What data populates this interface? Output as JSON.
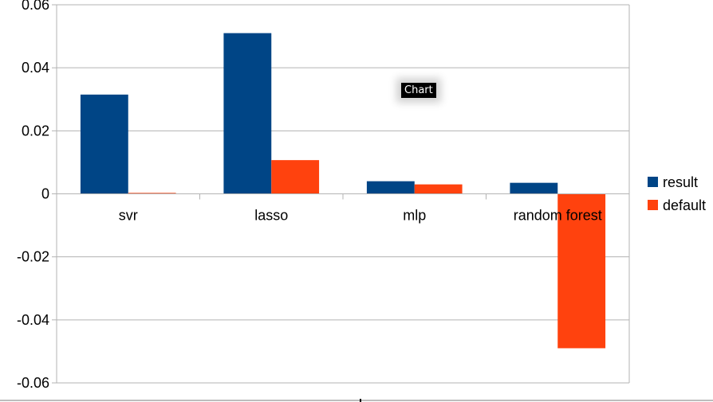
{
  "tooltip": "Chart",
  "chart_data": {
    "type": "bar",
    "categories": [
      "svr",
      "lasso",
      "mlp",
      "random forest"
    ],
    "series": [
      {
        "name": "result",
        "color": "#004586",
        "values": [
          0.0315,
          0.051,
          0.004,
          0.0035
        ]
      },
      {
        "name": "default",
        "color": "#ff420e",
        "values": [
          0.0003,
          0.0107,
          0.003,
          -0.049
        ]
      }
    ],
    "ylim": [
      -0.06,
      0.06
    ],
    "yticks": [
      "-0.06",
      "-0.04",
      "-0.02",
      "0",
      "0.02",
      "0.04",
      "0.06"
    ],
    "ytick_values": [
      -0.06,
      -0.04,
      -0.02,
      0,
      0.02,
      0.04,
      0.06
    ],
    "grid": true,
    "legend_position": "right"
  }
}
